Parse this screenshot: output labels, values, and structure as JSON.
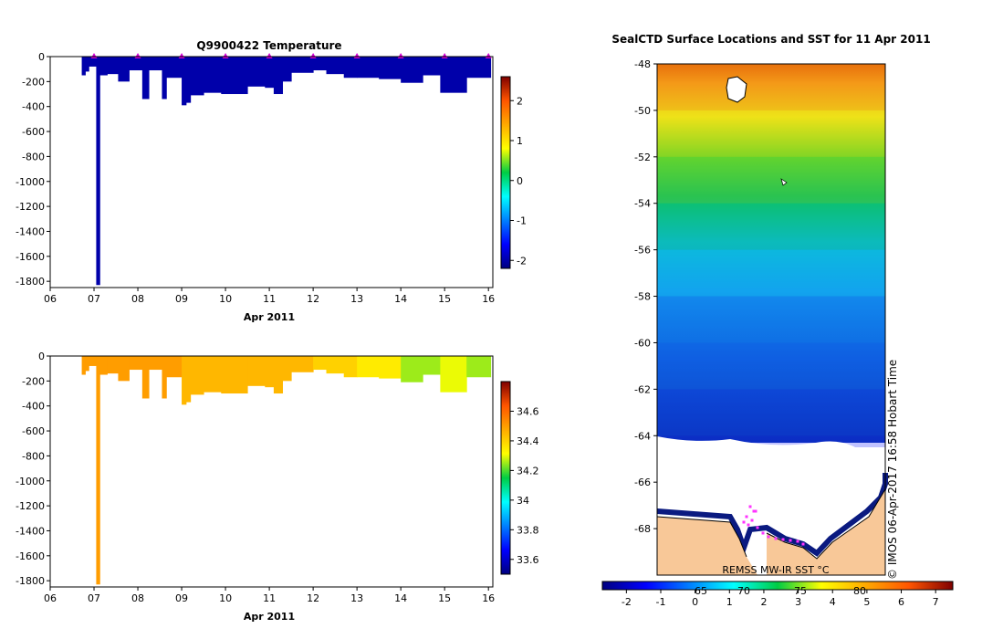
{
  "chart_data": [
    {
      "type": "heatmap",
      "title": "Q9900422  Temperature",
      "xlabel": "Apr 2011",
      "ylabel": "",
      "ylim": [
        -1850,
        0
      ],
      "xlim": [
        6,
        16.1
      ],
      "x_ticks": [
        "06",
        "07",
        "08",
        "09",
        "10",
        "11",
        "12",
        "13",
        "14",
        "15",
        "16"
      ],
      "y_ticks": [
        "0",
        "-200",
        "-400",
        "-600",
        "-800",
        "-1000",
        "-1200",
        "-1400",
        "-1600",
        "-1800"
      ],
      "colorbar": {
        "min": -2.2,
        "max": 2.6,
        "ticks": [
          "2",
          "1",
          "0",
          "-1",
          "-2"
        ]
      },
      "marker_color": "#d400d4",
      "marker_x": [
        7,
        8,
        9,
        10,
        11,
        12,
        13,
        14,
        15,
        16
      ],
      "profiles": [
        {
          "x0": 6.72,
          "x1": 6.8,
          "depth": 150,
          "value": -2.0
        },
        {
          "x0": 6.8,
          "x1": 6.88,
          "depth": 120,
          "value": -2.0
        },
        {
          "x0": 6.88,
          "x1": 7.05,
          "depth": 80,
          "value": -2.0
        },
        {
          "x0": 7.05,
          "x1": 7.13,
          "depth": 1830,
          "value": -2.0
        },
        {
          "x0": 7.13,
          "x1": 7.3,
          "depth": 150,
          "value": -2.0
        },
        {
          "x0": 7.3,
          "x1": 7.55,
          "depth": 140,
          "value": -2.0
        },
        {
          "x0": 7.55,
          "x1": 7.8,
          "depth": 200,
          "value": -2.0
        },
        {
          "x0": 7.8,
          "x1": 8.1,
          "depth": 110,
          "value": -2.0
        },
        {
          "x0": 8.1,
          "x1": 8.25,
          "depth": 340,
          "value": -2.0
        },
        {
          "x0": 8.25,
          "x1": 8.55,
          "depth": 110,
          "value": -2.0
        },
        {
          "x0": 8.55,
          "x1": 8.65,
          "depth": 340,
          "value": -2.0
        },
        {
          "x0": 8.65,
          "x1": 9.0,
          "depth": 170,
          "value": -2.0
        },
        {
          "x0": 9.0,
          "x1": 9.1,
          "depth": 390,
          "value": -2.0
        },
        {
          "x0": 9.1,
          "x1": 9.2,
          "depth": 370,
          "value": -2.0
        },
        {
          "x0": 9.2,
          "x1": 9.5,
          "depth": 310,
          "value": -2.0
        },
        {
          "x0": 9.5,
          "x1": 9.9,
          "depth": 290,
          "value": -2.0
        },
        {
          "x0": 9.9,
          "x1": 10.5,
          "depth": 300,
          "value": -2.0
        },
        {
          "x0": 10.5,
          "x1": 10.9,
          "depth": 240,
          "value": -2.0
        },
        {
          "x0": 10.9,
          "x1": 11.1,
          "depth": 250,
          "value": -2.0
        },
        {
          "x0": 11.1,
          "x1": 11.3,
          "depth": 300,
          "value": -2.0
        },
        {
          "x0": 11.3,
          "x1": 11.5,
          "depth": 200,
          "value": -2.0
        },
        {
          "x0": 11.5,
          "x1": 12.0,
          "depth": 130,
          "value": -2.0
        },
        {
          "x0": 12.0,
          "x1": 12.3,
          "depth": 110,
          "value": -2.0
        },
        {
          "x0": 12.3,
          "x1": 12.7,
          "depth": 140,
          "value": -2.0
        },
        {
          "x0": 12.7,
          "x1": 13.0,
          "depth": 170,
          "value": -2.0
        },
        {
          "x0": 13.0,
          "x1": 13.5,
          "depth": 170,
          "value": -2.0
        },
        {
          "x0": 13.5,
          "x1": 14.0,
          "depth": 180,
          "value": -2.0
        },
        {
          "x0": 14.0,
          "x1": 14.5,
          "depth": 210,
          "value": -2.0
        },
        {
          "x0": 14.5,
          "x1": 14.9,
          "depth": 150,
          "value": -2.0
        },
        {
          "x0": 14.9,
          "x1": 15.5,
          "depth": 290,
          "value": -2.0
        },
        {
          "x0": 15.5,
          "x1": 16.05,
          "depth": 170,
          "value": -2.0
        }
      ]
    },
    {
      "type": "heatmap",
      "title": "",
      "xlabel": "Apr 2011",
      "ylabel": "",
      "ylim": [
        -1850,
        0
      ],
      "xlim": [
        6,
        16.1
      ],
      "x_ticks": [
        "06",
        "07",
        "08",
        "09",
        "10",
        "11",
        "12",
        "13",
        "14",
        "15",
        "16"
      ],
      "y_ticks": [
        "0",
        "-200",
        "-400",
        "-600",
        "-800",
        "-1000",
        "-1200",
        "-1400",
        "-1600",
        "-1800"
      ],
      "colorbar": {
        "min": 33.5,
        "max": 34.8,
        "ticks": [
          "34.6",
          "34.4",
          "34.2",
          "34",
          "33.8",
          "33.6"
        ]
      },
      "profiles": [
        {
          "x0": 6.72,
          "x1": 6.8,
          "depth": 150,
          "value": 34.5
        },
        {
          "x0": 6.8,
          "x1": 6.88,
          "depth": 120,
          "value": 34.5
        },
        {
          "x0": 6.88,
          "x1": 7.05,
          "depth": 80,
          "value": 34.5
        },
        {
          "x0": 7.05,
          "x1": 7.13,
          "depth": 1830,
          "value": 34.5
        },
        {
          "x0": 7.13,
          "x1": 7.3,
          "depth": 150,
          "value": 34.5
        },
        {
          "x0": 7.3,
          "x1": 7.55,
          "depth": 140,
          "value": 34.5
        },
        {
          "x0": 7.55,
          "x1": 7.8,
          "depth": 200,
          "value": 34.5
        },
        {
          "x0": 7.8,
          "x1": 8.1,
          "depth": 110,
          "value": 34.5
        },
        {
          "x0": 8.1,
          "x1": 8.25,
          "depth": 340,
          "value": 34.5
        },
        {
          "x0": 8.25,
          "x1": 8.55,
          "depth": 110,
          "value": 34.5
        },
        {
          "x0": 8.55,
          "x1": 8.65,
          "depth": 340,
          "value": 34.5
        },
        {
          "x0": 8.65,
          "x1": 9.0,
          "depth": 170,
          "value": 34.5
        },
        {
          "x0": 9.0,
          "x1": 9.1,
          "depth": 390,
          "value": 34.45
        },
        {
          "x0": 9.1,
          "x1": 9.2,
          "depth": 370,
          "value": 34.45
        },
        {
          "x0": 9.2,
          "x1": 9.5,
          "depth": 310,
          "value": 34.45
        },
        {
          "x0": 9.5,
          "x1": 9.9,
          "depth": 290,
          "value": 34.45
        },
        {
          "x0": 9.9,
          "x1": 10.5,
          "depth": 300,
          "value": 34.45
        },
        {
          "x0": 10.5,
          "x1": 10.9,
          "depth": 240,
          "value": 34.45
        },
        {
          "x0": 10.9,
          "x1": 11.1,
          "depth": 250,
          "value": 34.45
        },
        {
          "x0": 11.1,
          "x1": 11.3,
          "depth": 300,
          "value": 34.45
        },
        {
          "x0": 11.3,
          "x1": 11.5,
          "depth": 200,
          "value": 34.45
        },
        {
          "x0": 11.5,
          "x1": 12.0,
          "depth": 130,
          "value": 34.45
        },
        {
          "x0": 12.0,
          "x1": 12.3,
          "depth": 110,
          "value": 34.4
        },
        {
          "x0": 12.3,
          "x1": 12.7,
          "depth": 140,
          "value": 34.4
        },
        {
          "x0": 12.7,
          "x1": 13.0,
          "depth": 170,
          "value": 34.4
        },
        {
          "x0": 13.0,
          "x1": 13.5,
          "depth": 170,
          "value": 34.35
        },
        {
          "x0": 13.5,
          "x1": 14.0,
          "depth": 180,
          "value": 34.35
        },
        {
          "x0": 14.0,
          "x1": 14.5,
          "depth": 210,
          "value": 34.25
        },
        {
          "x0": 14.5,
          "x1": 14.9,
          "depth": 150,
          "value": 34.25
        },
        {
          "x0": 14.9,
          "x1": 15.5,
          "depth": 290,
          "value": 34.3
        },
        {
          "x0": 15.5,
          "x1": 16.05,
          "depth": 170,
          "value": 34.25
        }
      ]
    },
    {
      "type": "heatmap",
      "title": "SealCTD Surface Locations and SST for 11 Apr 2011",
      "xlabel": "",
      "ylabel": "",
      "ylim": [
        -70,
        -48
      ],
      "y_ticks": [
        "-48",
        "-50",
        "-52",
        "-54",
        "-56",
        "-58",
        "-60",
        "-62",
        "-64",
        "-66",
        "-68"
      ],
      "sst_bands": [
        {
          "lat_top": -48,
          "lat_bottom": -50,
          "value": 5.5
        },
        {
          "lat_top": -50,
          "lat_bottom": -52,
          "value": 4.0
        },
        {
          "lat_top": -52,
          "lat_bottom": -54,
          "value": 3.0
        },
        {
          "lat_top": -54,
          "lat_bottom": -56,
          "value": 2.0
        },
        {
          "lat_top": -56,
          "lat_bottom": -58,
          "value": 0.8
        },
        {
          "lat_top": -58,
          "lat_bottom": -60,
          "value": -0.2
        },
        {
          "lat_top": -60,
          "lat_bottom": -62,
          "value": -0.5
        },
        {
          "lat_top": -62,
          "lat_bottom": -64,
          "value": -1.0
        },
        {
          "lat_top": -64,
          "lat_bottom": -64.5,
          "value": -1.3
        }
      ],
      "colorbar": {
        "min": -2.7,
        "max": 7.5,
        "ticks": [
          "-2",
          "-1",
          "0",
          "1",
          "2",
          "3",
          "4",
          "5",
          "6",
          "7"
        ]
      },
      "bottom_ticks": [
        "65",
        "70",
        "75",
        "80"
      ],
      "source_label": "REMSS MW-IR SST °C",
      "side_label": "© IMOS 06-Apr-2017 16:58 Hobart Time",
      "land_color": "#f8c898",
      "marker_color": "#ff33ff"
    }
  ]
}
